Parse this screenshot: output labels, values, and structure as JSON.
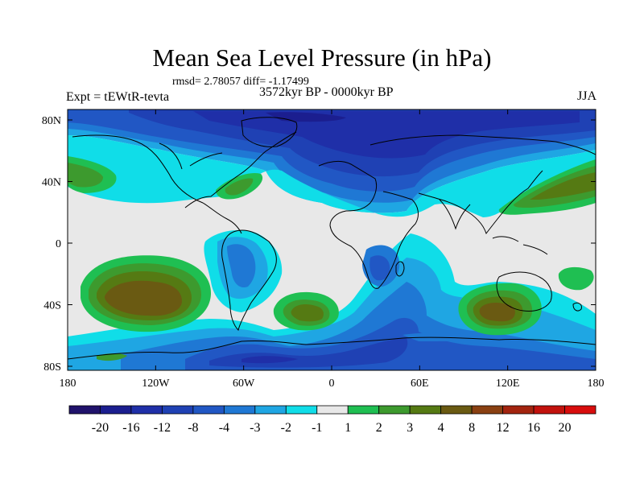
{
  "header": {
    "title": "Mean Sea Level Pressure (in hPa)",
    "stats": "rmsd= 2.78057 diff= -1.17499",
    "expt": "Expt = tEWtR-tevta",
    "period": "3572kyr BP - 0000kyr BP",
    "season": "JJA"
  },
  "axes": {
    "lat_labels": [
      "80N",
      "40N",
      "0",
      "40S",
      "80S"
    ],
    "lon_labels": [
      "180",
      "120W",
      "60W",
      "0",
      "60E",
      "120E",
      "180"
    ]
  },
  "colorbar": {
    "labels": [
      "-20",
      "-16",
      "-12",
      "-8",
      "-4",
      "-3",
      "-2",
      "-1",
      "1",
      "2",
      "3",
      "4",
      "8",
      "12",
      "16",
      "20"
    ],
    "colors": [
      "#20126b",
      "#1b1e8f",
      "#1f2fa8",
      "#1f41b4",
      "#2157c4",
      "#1f78d4",
      "#1fa6e3",
      "#10dde8",
      "#e8e8e8",
      "#1fbf52",
      "#3d9a2e",
      "#557a13",
      "#6a5a12",
      "#8a4012",
      "#a3240f",
      "#c2120d",
      "#d80d0d"
    ]
  },
  "colors": {
    "background": "#e8e8e8",
    "land_outline": "#000000"
  }
}
